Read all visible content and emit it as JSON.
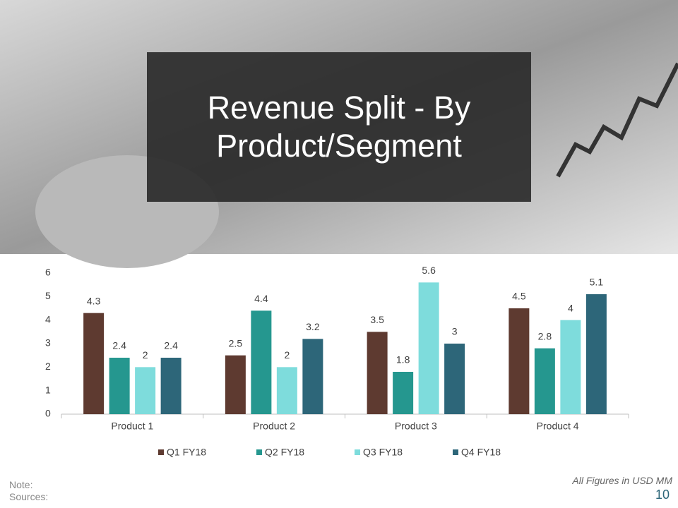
{
  "title": "Revenue Split - By Product/Segment",
  "chart_data": {
    "type": "bar",
    "categories": [
      "Product 1",
      "Product 2",
      "Product 3",
      "Product 4"
    ],
    "series": [
      {
        "name": "Q1 FY18",
        "color": "#5e3a30",
        "values": [
          4.3,
          2.5,
          3.5,
          4.5
        ]
      },
      {
        "name": "Q2 FY18",
        "color": "#25978f",
        "values": [
          2.4,
          4.4,
          1.8,
          2.8
        ]
      },
      {
        "name": "Q3 FY18",
        "color": "#7edcdc",
        "values": [
          2,
          2,
          5.6,
          4
        ]
      },
      {
        "name": "Q4 FY18",
        "color": "#2d6679",
        "values": [
          2.4,
          3.2,
          3,
          5.1
        ]
      }
    ],
    "ylim": [
      0,
      6
    ],
    "yticks": [
      0,
      1,
      2,
      3,
      4,
      5,
      6
    ],
    "grid": false,
    "legend": "bottom"
  },
  "footer": {
    "note": "Note:",
    "sources": "Sources:",
    "units": "All Figures in USD MM",
    "page": "10"
  }
}
